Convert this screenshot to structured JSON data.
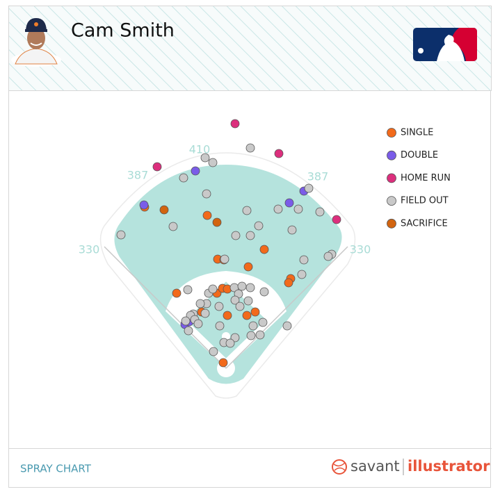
{
  "header": {
    "name": "Cam Smith"
  },
  "chart_data": {
    "type": "scatter",
    "xlim": [
      -313,
      382
    ],
    "ylim": [
      -115,
      400
    ],
    "distances": [
      330,
      387,
      410,
      387,
      330
    ],
    "series": [
      {
        "name": "SINGLE",
        "color": "#f26a1b",
        "x": [
          -117,
          -27,
          55,
          -12,
          -3,
          32,
          93,
          90,
          -71,
          -13,
          -5,
          2,
          -35,
          2,
          30,
          42,
          -4
        ],
        "y": [
          232,
          220,
          171,
          157,
          156,
          146,
          129,
          123,
          108,
          108,
          115,
          114,
          81,
          76,
          76,
          81,
          8
        ]
      },
      {
        "name": "DOUBLE",
        "color": "#7a5ce8",
        "x": [
          -44,
          -118,
          112,
          91,
          -59,
          -53
        ],
        "y": [
          284,
          235,
          255,
          238,
          63,
          67
        ]
      },
      {
        "name": "HOME RUN",
        "color": "#dc2f7d",
        "x": [
          13,
          76,
          -99,
          159
        ],
        "y": [
          352,
          309,
          290,
          214
        ]
      },
      {
        "name": "FIELD OUT",
        "color": "#c9c9c9",
        "x": [
          35,
          -30,
          -19,
          -61,
          -28,
          119,
          75,
          104,
          135,
          30,
          -76,
          47,
          95,
          14,
          35,
          -151,
          -2,
          152,
          147,
          112,
          109,
          -55,
          -25,
          -19,
          12,
          23,
          35,
          55,
          18,
          -28,
          -37,
          13,
          32,
          20,
          -47,
          -51,
          -30,
          -45,
          -58,
          -10,
          -40,
          53,
          39,
          -9,
          -54,
          13,
          -3,
          49,
          36,
          88,
          -18,
          6
        ],
        "y": [
          317,
          303,
          296,
          274,
          251,
          259,
          229,
          229,
          225,
          227,
          204,
          205,
          199,
          191,
          191,
          192,
          157,
          164,
          161,
          156,
          135,
          113,
          108,
          114,
          116,
          118,
          116,
          110,
          107,
          93,
          93,
          98,
          97,
          89,
          78,
          76,
          79,
          70,
          68,
          89,
          64,
          66,
          61,
          61,
          54,
          44,
          37,
          48,
          47,
          61,
          24,
          36
        ]
      },
      {
        "name": "SACRIFICE",
        "color": "#d2640f",
        "x": [
          -89,
          -13
        ],
        "y": [
          228,
          210
        ]
      }
    ]
  },
  "footer": {
    "label": "SPRAY CHART",
    "brand_left": "savant",
    "brand_right": "illustrator"
  }
}
